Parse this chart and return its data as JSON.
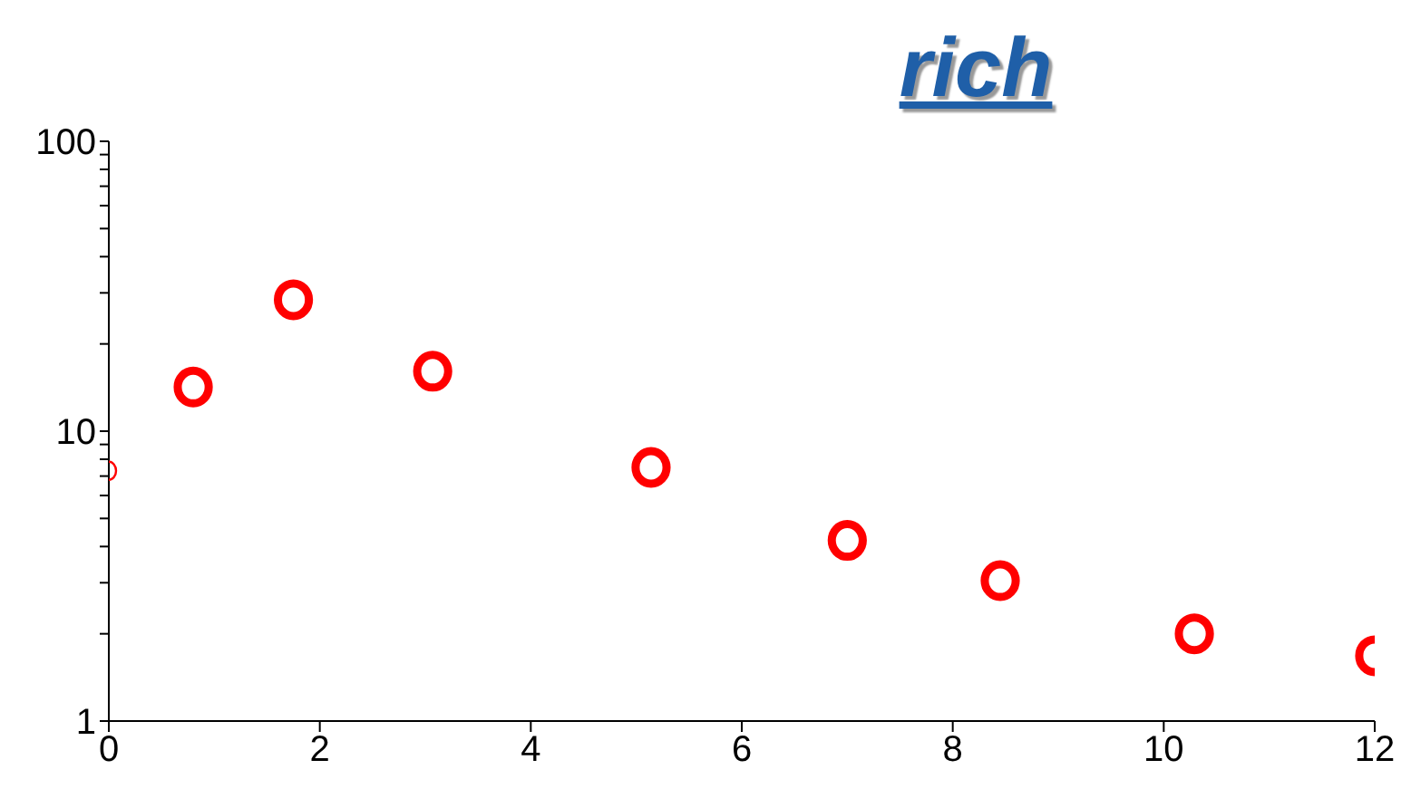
{
  "chart_data": {
    "type": "scatter",
    "title": "rich",
    "log": "y",
    "marker": "circle",
    "grid": false,
    "legend": false,
    "xlim": [
      0,
      12
    ],
    "xticks": [
      0,
      2,
      4,
      6,
      8,
      10,
      12
    ],
    "ylim": [
      1,
      100
    ],
    "yticks": [
      1,
      {
        "value": 2,
        "label": null
      },
      {
        "value": 3,
        "label": null
      },
      {
        "value": 4,
        "label": null
      },
      {
        "value": 5,
        "label": null
      },
      {
        "value": 6,
        "label": null
      },
      {
        "value": 7,
        "label": null
      },
      {
        "value": 8,
        "label": null
      },
      {
        "value": 9,
        "label": null
      },
      10,
      {
        "value": 20,
        "label": null
      },
      {
        "value": 30,
        "label": null
      },
      {
        "value": 40,
        "label": null
      },
      {
        "value": 50,
        "label": null
      },
      {
        "value": 60,
        "label": null
      },
      {
        "value": 70,
        "label": null
      },
      {
        "value": 80,
        "label": null
      },
      {
        "value": 90,
        "label": null
      },
      100
    ],
    "series": [
      {
        "color": "#ff0000",
        "x": [
          0.8,
          1.75,
          3.07,
          5.14,
          7.0,
          8.45,
          10.29,
          12
        ],
        "values": [
          14.2,
          28.4,
          16.1,
          7.5,
          4.2,
          3.05,
          2.0,
          1.68
        ]
      },
      {
        "color": "#ff0000",
        "x": [
          0
        ],
        "values": [
          7.3
        ]
      }
    ]
  }
}
